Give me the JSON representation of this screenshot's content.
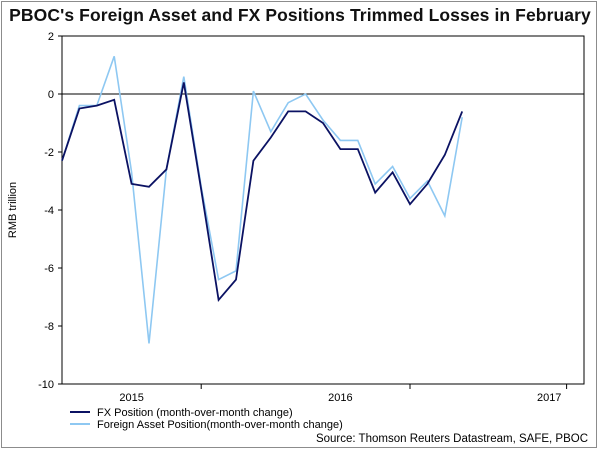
{
  "title": "PBOC's Foreign Asset and FX Positions Trimmed Losses in February",
  "source": "Source: Thomson Reuters Datastream, SAFE, PBOC",
  "colors": {
    "fx": "#0b1263",
    "foreign": "#8ec8f2",
    "grid": "#000000"
  },
  "chart_data": {
    "type": "line",
    "title": "PBOC's Foreign Asset and FX Positions Trimmed Losses in February",
    "ylabel": "RMB trillion",
    "xlabel": "",
    "ylim": [
      -10,
      2
    ],
    "yticks": [
      2,
      0,
      -2,
      -4,
      -6,
      -8,
      -10
    ],
    "x_range": [
      0,
      30
    ],
    "x_minor_ticks": [
      8,
      20,
      29
    ],
    "x_tick_labels": [
      {
        "label": "2015",
        "x": 4
      },
      {
        "label": "2016",
        "x": 16
      },
      {
        "label": "2017",
        "x": 28
      }
    ],
    "x": [
      0,
      1,
      2,
      3,
      4,
      5,
      6,
      7,
      8,
      9,
      10,
      11,
      12,
      13,
      14,
      15,
      16,
      17,
      18,
      19,
      20,
      21,
      22,
      23,
      24,
      25,
      26
    ],
    "series": [
      {
        "name": "FX Position (month-over-month change)",
        "color": "#0b1263",
        "values": [
          -2.3,
          -0.5,
          -0.4,
          -0.2,
          -3.1,
          -3.2,
          -2.6,
          0.4,
          -3.3,
          -7.1,
          -6.4,
          -2.3,
          -1.5,
          -0.6,
          -0.6,
          -1.0,
          -1.9,
          -1.9,
          -3.4,
          -2.7,
          -3.8,
          -3.1,
          -2.1,
          -0.6,
          null,
          null,
          null
        ]
      },
      {
        "name": "Foreign Asset Position(month-over-month change)",
        "color": "#8ec8f2",
        "values": [
          -2.3,
          -0.4,
          -0.4,
          1.3,
          -2.7,
          -8.6,
          -2.6,
          0.6,
          -3.2,
          -6.4,
          -6.1,
          0.1,
          -1.3,
          -0.3,
          0.0,
          -0.9,
          -1.6,
          -1.6,
          -3.1,
          -2.5,
          -3.6,
          -3.0,
          -4.2,
          -0.8,
          null,
          null,
          null
        ]
      }
    ],
    "legend": [
      {
        "label": "FX Position (month-over-month change)",
        "color": "#0b1263"
      },
      {
        "label": "Foreign Asset Position(month-over-month change)",
        "color": "#8ec8f2"
      }
    ]
  }
}
